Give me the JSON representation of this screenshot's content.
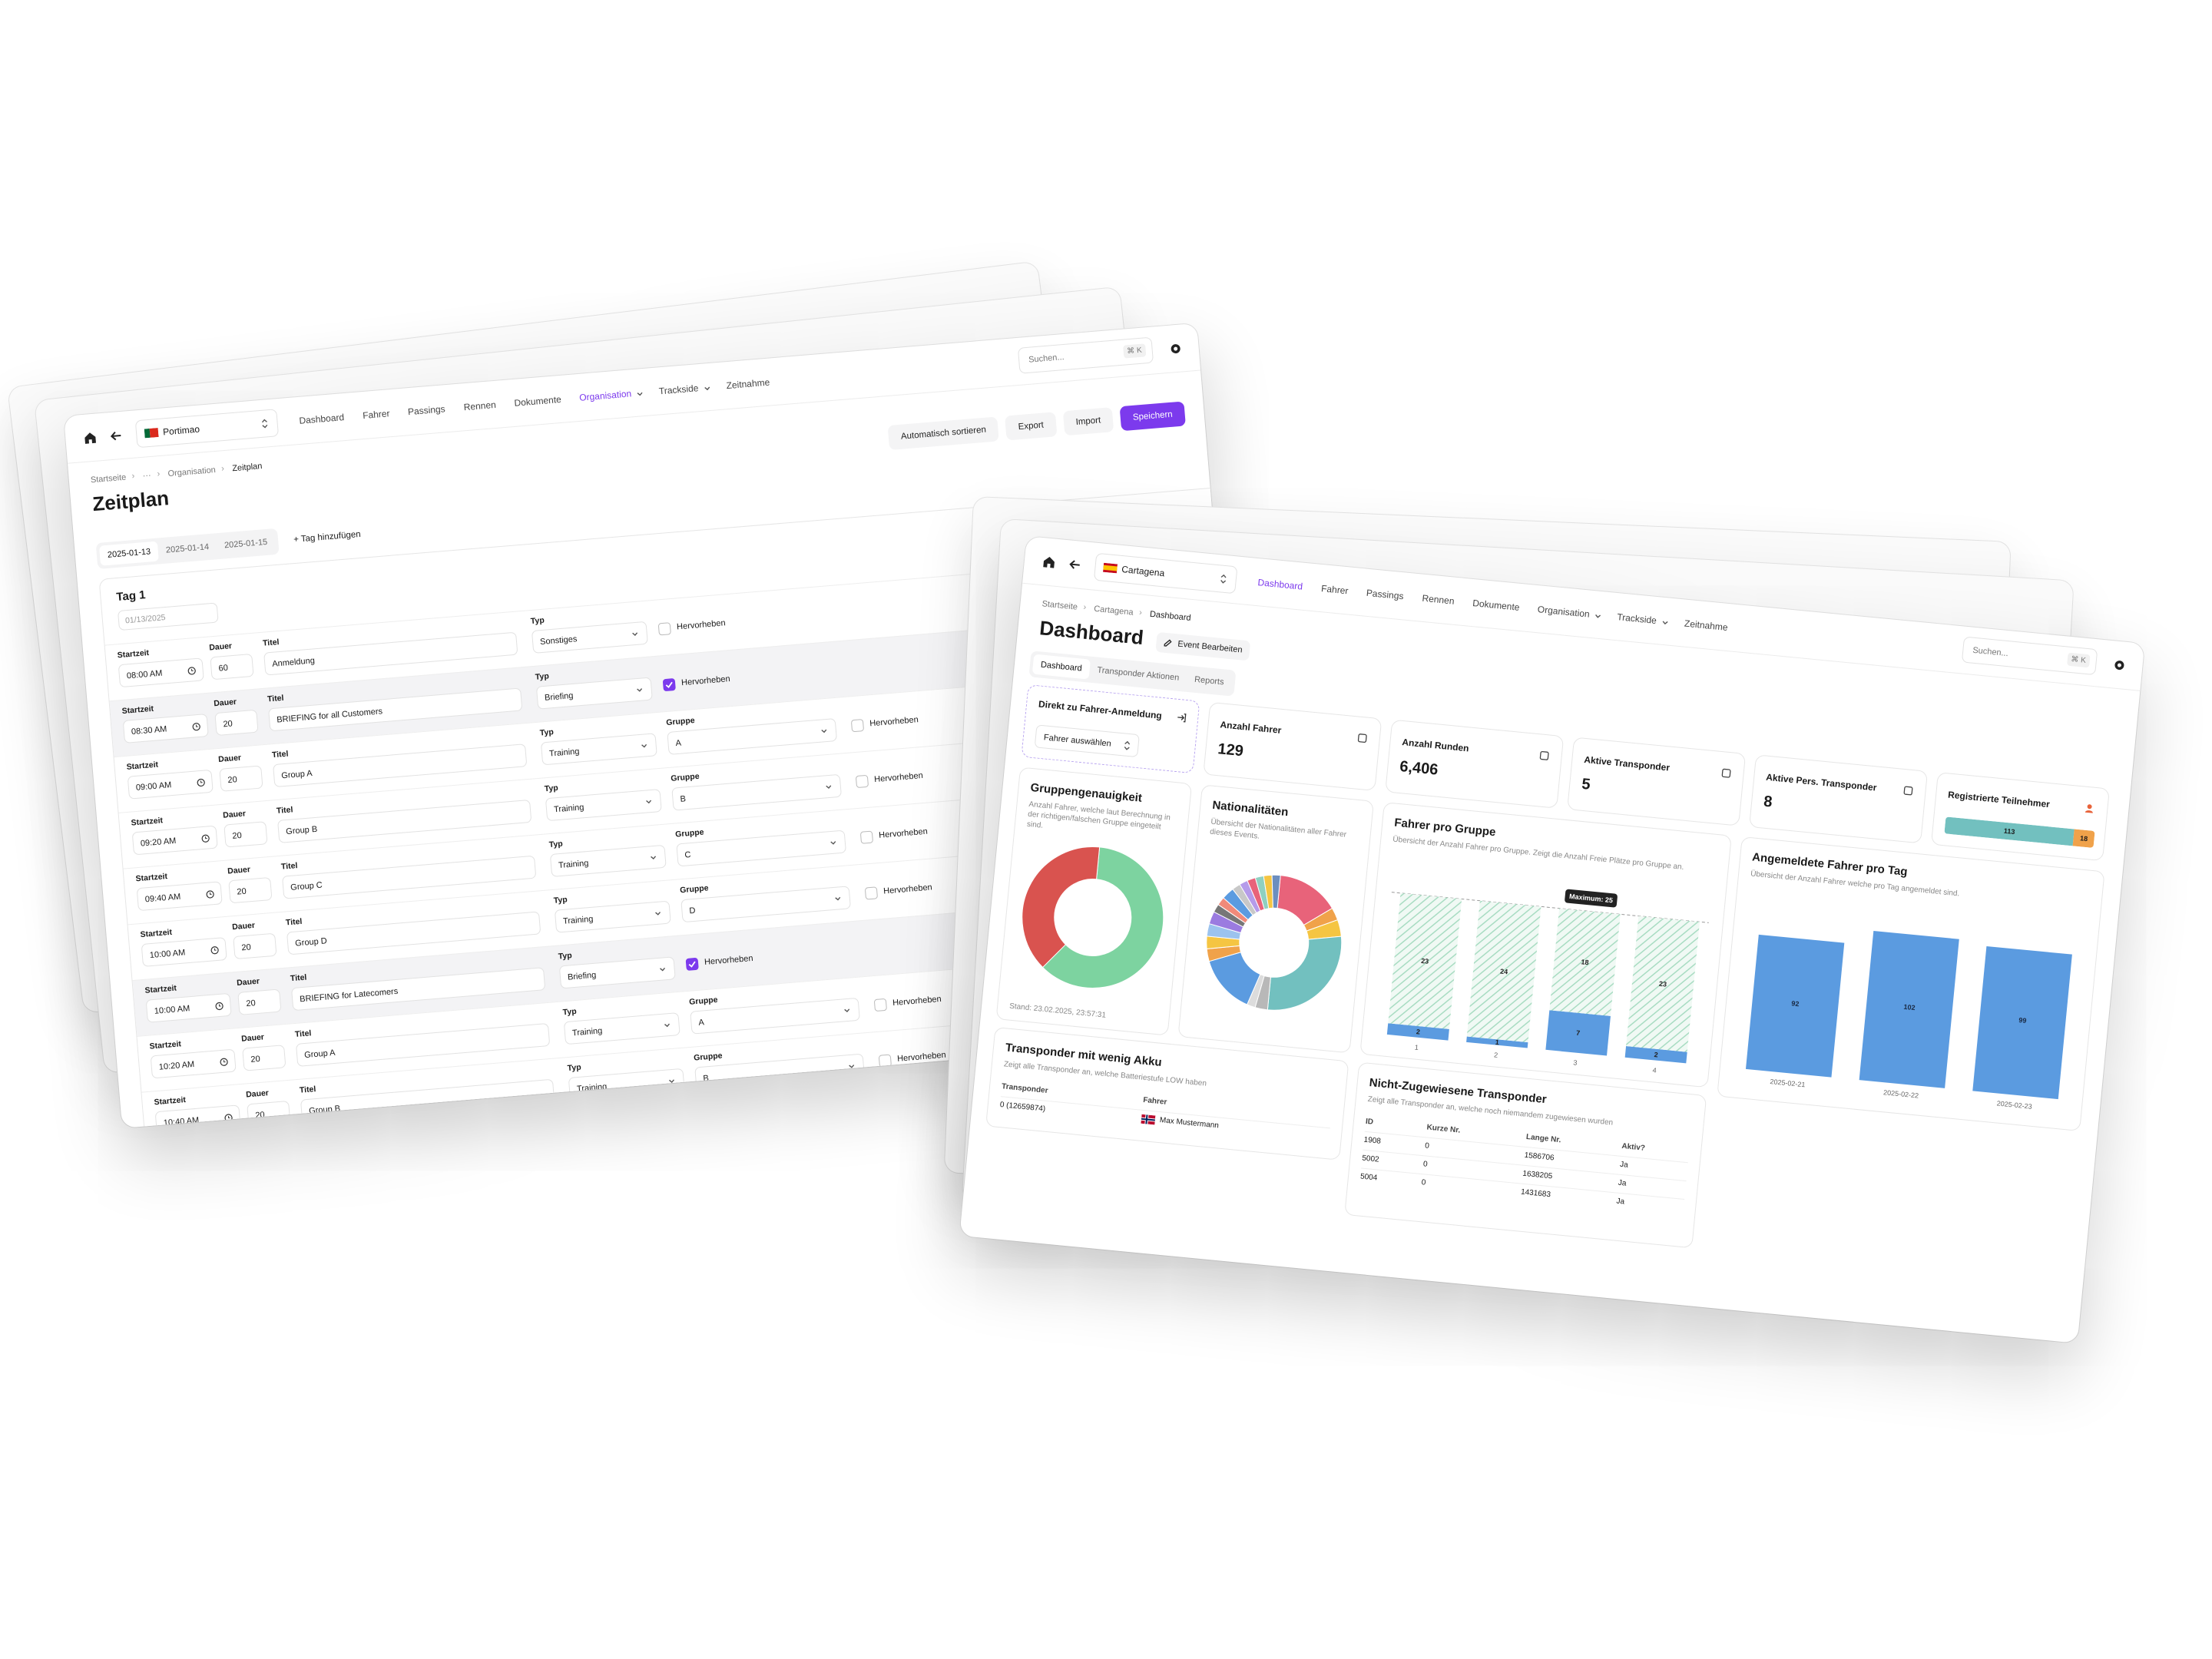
{
  "schedule": {
    "location": "Portimao",
    "nav": [
      "Dashboard",
      "Fahrer",
      "Passings",
      "Rennen",
      "Dokumente",
      "Organisation",
      "Trackside",
      "Zeitnahme"
    ],
    "active_nav": 5,
    "dropdown_nav": [
      5,
      6
    ],
    "search": "Suchen...",
    "shortcut": "⌘ K",
    "breadcrumb": [
      "Startseite",
      "···",
      "Organisation",
      "Zeitplan"
    ],
    "title": "Zeitplan",
    "actions": [
      "Automatisch sortieren",
      "Export",
      "Import",
      "Speichern"
    ],
    "days": [
      "2025-01-13",
      "2025-01-14",
      "2025-01-15"
    ],
    "add_day": "Tag hinzufügen",
    "day_title": "Tag 1",
    "day_date": "01/13/2025",
    "labels": {
      "start": "Startzeit",
      "duration": "Dauer",
      "title": "Titel",
      "type": "Typ",
      "group": "Gruppe",
      "highlight": "Hervorheben"
    },
    "rows": [
      {
        "start": "08:00 AM",
        "duration": 60,
        "title": "Anmeldung",
        "type": "Sonstiges",
        "highlight": false
      },
      {
        "start": "08:30 AM",
        "duration": 20,
        "title": "BRIEFING for all Customers",
        "type": "Briefing",
        "highlight": true
      },
      {
        "start": "09:00 AM",
        "duration": 20,
        "title": "Group A",
        "type": "Training",
        "group": "A",
        "highlight": false
      },
      {
        "start": "09:20 AM",
        "duration": 20,
        "title": "Group B",
        "type": "Training",
        "group": "B",
        "highlight": false
      },
      {
        "start": "09:40 AM",
        "duration": 20,
        "title": "Group C",
        "type": "Training",
        "group": "C",
        "highlight": false
      },
      {
        "start": "10:00 AM",
        "duration": 20,
        "title": "Group D",
        "type": "Training",
        "group": "D",
        "highlight": false
      },
      {
        "start": "10:00 AM",
        "duration": 20,
        "title": "BRIEFING for Latecomers",
        "type": "Briefing",
        "highlight": true
      },
      {
        "start": "10:20 AM",
        "duration": 20,
        "title": "Group A",
        "type": "Training",
        "group": "A",
        "highlight": false
      },
      {
        "start": "10:40 AM",
        "duration": 20,
        "title": "Group B",
        "type": "Training",
        "group": "B",
        "highlight": false
      }
    ]
  },
  "dashboard": {
    "location": "Cartagena",
    "nav": [
      "Dashboard",
      "Fahrer",
      "Passings",
      "Rennen",
      "Dokumente",
      "Organisation",
      "Trackside",
      "Zeitnahme"
    ],
    "active_nav": 0,
    "dropdown_nav": [
      5,
      6
    ],
    "search": "Suchen...",
    "shortcut": "⌘ K",
    "breadcrumb": [
      "Startseite",
      "Cartagena",
      "Dashboard"
    ],
    "title": "Dashboard",
    "edit": "Event Bearbeiten",
    "tabs": [
      "Dashboard",
      "Transponder Aktionen",
      "Reports"
    ],
    "quick": {
      "title": "Direkt zu Fahrer-Anmeldung",
      "select": "Fahrer auswählen"
    },
    "stats": [
      {
        "label": "Anzahl Fahrer",
        "value": 129
      },
      {
        "label": "Anzahl Runden",
        "value": "6,406"
      },
      {
        "label": "Aktive Transponder",
        "value": 5
      },
      {
        "label": "Aktive Pers. Transponder",
        "value": 8
      }
    ],
    "registered": {
      "label": "Registrierte Teilnehmer",
      "values": [
        113,
        18
      ],
      "colors": [
        "#72c0bf",
        "#f0a24a"
      ]
    },
    "accuracy": {
      "type": "donut",
      "title": "Gruppengenauigkeit",
      "description": "Anzahl Fahrer, welche laut Berechnung in der richtigen/falschen Gruppe eingeteilt sind.",
      "values": [
        61,
        39
      ],
      "colors": [
        "#7dd3a0",
        "#d9534f"
      ],
      "footer": "Stand: 23.02.2025, 23:57:31"
    },
    "nationalities": {
      "type": "donut",
      "title": "Nationalitäten",
      "description": "Übersicht der Nationalitäten aller Fahrer dieses Events.",
      "values": [
        15,
        3,
        4,
        28,
        3,
        2,
        14,
        3,
        3,
        3,
        3,
        2,
        2,
        3,
        2,
        2,
        2,
        2,
        2,
        2
      ],
      "colors": [
        "#e8637a",
        "#f0a24a",
        "#f5c542",
        "#72c0bf",
        "#b8b8b8",
        "#dcdcdc",
        "#5b9be0",
        "#f0a24a",
        "#f5c542",
        "#9cc3ee",
        "#9b7be0",
        "#777777",
        "#f08a7a",
        "#5b9be0",
        "#c8c8c8",
        "#b59bea",
        "#e8637a",
        "#8fd0c0",
        "#f5c542",
        "#6c8ebf"
      ]
    },
    "per_group": {
      "type": "stacked-bar",
      "title": "Fahrer pro Gruppe",
      "description": "Übersicht der Anzahl Fahrer pro Gruppe. Zeigt die Anzahl Freie Plätze pro Gruppe an.",
      "categories": [
        "1",
        "2",
        "3",
        "4"
      ],
      "series": [
        {
          "color": "#5b9be0",
          "values": [
            2,
            1,
            7,
            2
          ]
        },
        {
          "color": "#a8dcc2",
          "pattern": "hatch",
          "values": [
            23,
            24,
            18,
            23
          ]
        }
      ],
      "max": {
        "value": 25,
        "label": "Maximum: 25"
      }
    },
    "per_day": {
      "type": "bar",
      "title": "Angemeldete Fahrer pro Tag",
      "description": "Übersicht der Anzahl Fahrer welche pro Tag angemeldet sind.",
      "categories": [
        "2025-02-21",
        "2025-02-22",
        "2025-02-23"
      ],
      "values": [
        92,
        102,
        99
      ],
      "color": "#5b9be0"
    },
    "low_battery": {
      "title": "Transponder mit wenig Akku",
      "description": "Zeigt alle Transponder an, welche Batteriestufe LOW haben",
      "columns": [
        "Transponder",
        "Fahrer"
      ],
      "rows": [
        [
          "0 (12659874)",
          "Max Mustermann"
        ]
      ]
    },
    "unassigned": {
      "title": "Nicht-Zugewiesene Transponder",
      "description": "Zeigt alle Transponder an, welche noch niemandem zugewiesen wurden",
      "columns": [
        "ID",
        "Kurze Nr.",
        "Lange Nr.",
        "Aktiv?"
      ],
      "rows": [
        [
          "1908",
          "0",
          "1586706",
          "Ja"
        ],
        [
          "5002",
          "0",
          "1638205",
          "Ja"
        ],
        [
          "5004",
          "0",
          "1431683",
          "Ja"
        ]
      ]
    }
  }
}
